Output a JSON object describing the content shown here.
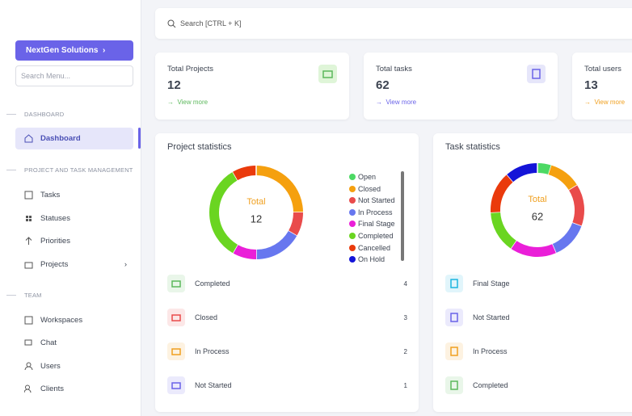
{
  "sidebar": {
    "brand": "NextGen Solutions",
    "search_placeholder": "Search Menu...",
    "sections": [
      {
        "title": "DASHBOARD",
        "items": [
          "Dashboard"
        ]
      },
      {
        "title": "PROJECT AND TASK MANAGEMENT",
        "items": [
          "Tasks",
          "Statuses",
          "Priorities",
          "Projects"
        ]
      },
      {
        "title": "TEAM",
        "items": [
          "Workspaces",
          "Chat",
          "Users",
          "Clients"
        ]
      }
    ]
  },
  "search": "Search [CTRL + K]",
  "stats": [
    {
      "title": "Total Projects",
      "value": 12,
      "link": "View more"
    },
    {
      "title": "Total tasks",
      "value": 62,
      "link": "View more"
    },
    {
      "title": "Total users",
      "value": 13,
      "link": "View more"
    }
  ],
  "project_statistics": {
    "title": "Project statistics",
    "total_label": "Total",
    "total": 12,
    "legend": [
      "Open",
      "Closed",
      "Not Started",
      "In Process",
      "Final Stage",
      "Completed",
      "Cancelled",
      "On Hold"
    ],
    "colors": [
      "#4cd964",
      "#f5a00f",
      "#e94b4b",
      "#6777ef",
      "#ea1fd8",
      "#6ad521",
      "#ea3a0c",
      "#1414d8"
    ],
    "values": [
      0,
      3,
      1,
      2,
      1,
      4,
      1,
      0
    ],
    "rows": [
      {
        "label": "Completed",
        "count": 4
      },
      {
        "label": "Closed",
        "count": 3
      },
      {
        "label": "In Process",
        "count": 2
      },
      {
        "label": "Not Started",
        "count": 1
      }
    ]
  },
  "task_statistics": {
    "title": "Task statistics",
    "total_label": "Total",
    "total": 62,
    "colors": [
      "#4cd964",
      "#f5a00f",
      "#e94b4b",
      "#6777ef",
      "#ea1fd8",
      "#6ad521",
      "#ea3a0c",
      "#1414d8"
    ],
    "values": [
      3,
      7,
      9,
      8,
      10,
      9,
      9,
      7
    ],
    "rows": [
      "Final Stage",
      "Not Started",
      "In Process",
      "Completed"
    ]
  }
}
